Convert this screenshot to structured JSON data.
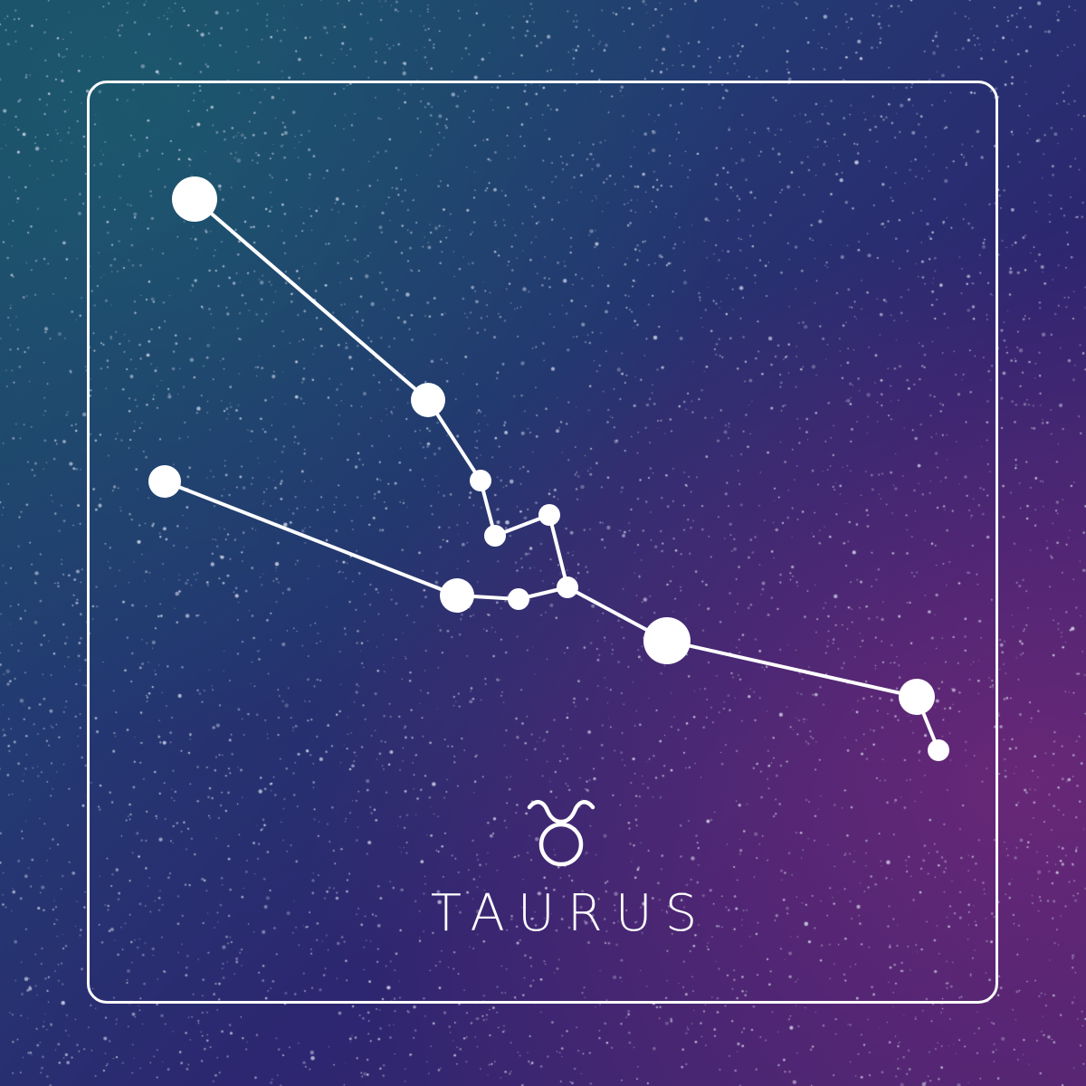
{
  "sign": {
    "name": "TAURUS",
    "symbol_icon": "taurus-zodiac-icon"
  },
  "colors": {
    "background_top_left": "#1d4a66",
    "background_center": "#233a72",
    "background_bottom_right": "#4a2470",
    "line": "#ffffff",
    "star": "#ffffff"
  }
}
